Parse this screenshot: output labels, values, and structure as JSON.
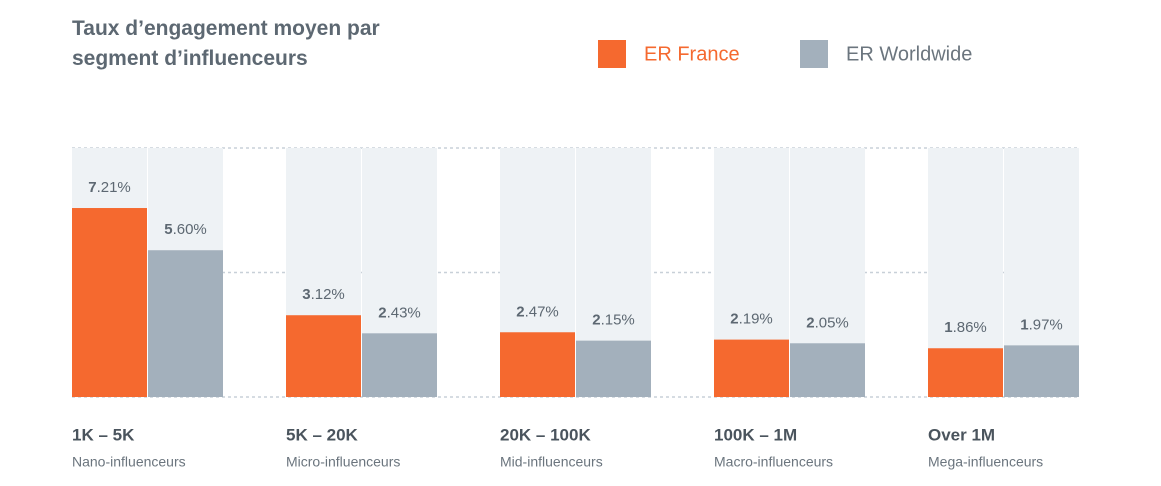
{
  "chart_data": {
    "type": "bar",
    "title": "Taux d’engagement moyen par segment d’influenceurs",
    "categories": [
      "1K – 5K",
      "5K – 20K",
      "20K – 100K",
      "100K – 1M",
      "Over 1M"
    ],
    "category_subtitles": [
      "Nano-influenceurs",
      "Micro-influenceurs",
      "Mid-influenceurs",
      "Macro-influenceurs",
      "Mega-influenceurs"
    ],
    "series": [
      {
        "name": "ER France",
        "color": "#f5692f",
        "values": [
          7.21,
          3.12,
          2.47,
          2.19,
          1.86
        ],
        "value_labels": [
          "7.21%",
          "3.12%",
          "2.47%",
          "2.19%",
          "1.86%"
        ]
      },
      {
        "name": "ER Worldwide",
        "color": "#a3b0bc",
        "values": [
          5.6,
          2.43,
          2.15,
          2.05,
          1.97
        ],
        "value_labels": [
          "5.60%",
          "2.43%",
          "2.15%",
          "2.05%",
          "1.97%"
        ]
      }
    ],
    "ylim": [
      0,
      9.5
    ],
    "yticks": [
      0,
      4.75,
      9.5
    ],
    "grid": true
  }
}
